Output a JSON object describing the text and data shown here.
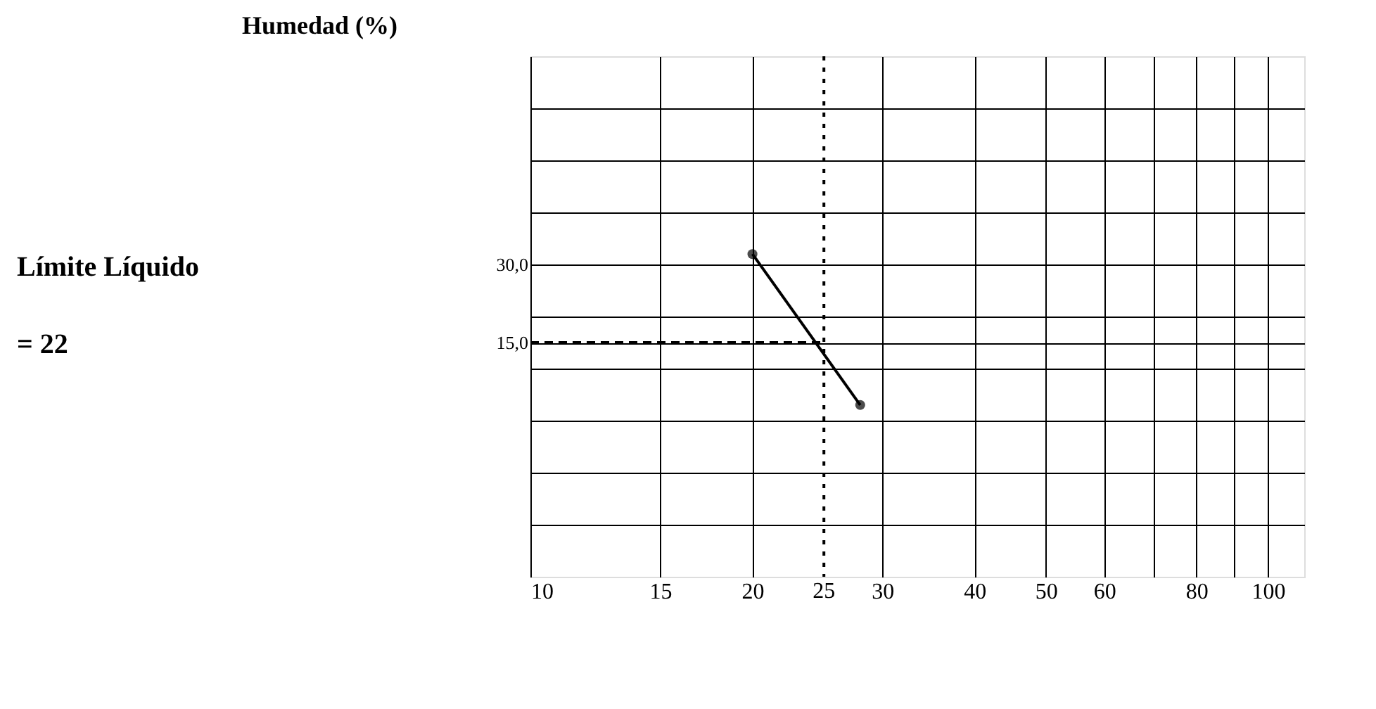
{
  "chart_data": {
    "type": "line",
    "ylabel": "Humedad (%)",
    "annotations": [
      "Límite Líquido",
      "= 22"
    ],
    "log": "x",
    "xlim": [
      10,
      112
    ],
    "xticks": [
      10,
      15,
      20,
      30,
      40,
      50,
      60,
      {
        "value": 70,
        "label": null
      },
      80,
      {
        "value": 90,
        "label": null
      },
      100
    ],
    "ylim": [
      -30,
      70
    ],
    "yticks": [
      {
        "value": -20,
        "label": null
      },
      {
        "value": -10,
        "label": null
      },
      {
        "value": 0,
        "label": null
      },
      {
        "value": 10,
        "label": null
      },
      {
        "value": 15,
        "label": "15,0"
      },
      {
        "value": 20,
        "label": null
      },
      {
        "value": 30,
        "label": "30,0"
      },
      {
        "value": 40,
        "label": null
      },
      {
        "value": 50,
        "label": null
      },
      {
        "value": 60,
        "label": null
      }
    ],
    "grid": true,
    "marker": "circle",
    "series": [
      {
        "color": "#000000",
        "x": [
          20,
          28
        ],
        "values": [
          32,
          3
        ]
      },
      {
        "color": "#000000",
        "x": [
          10,
          25
        ],
        "values": [
          15,
          15
        ],
        "line_style": "dashed",
        "marker": "none"
      }
    ],
    "ref_lines": [
      {
        "axis": "x",
        "value": 25,
        "label": "25",
        "line_style": "dotted",
        "color": "#000000"
      }
    ]
  }
}
